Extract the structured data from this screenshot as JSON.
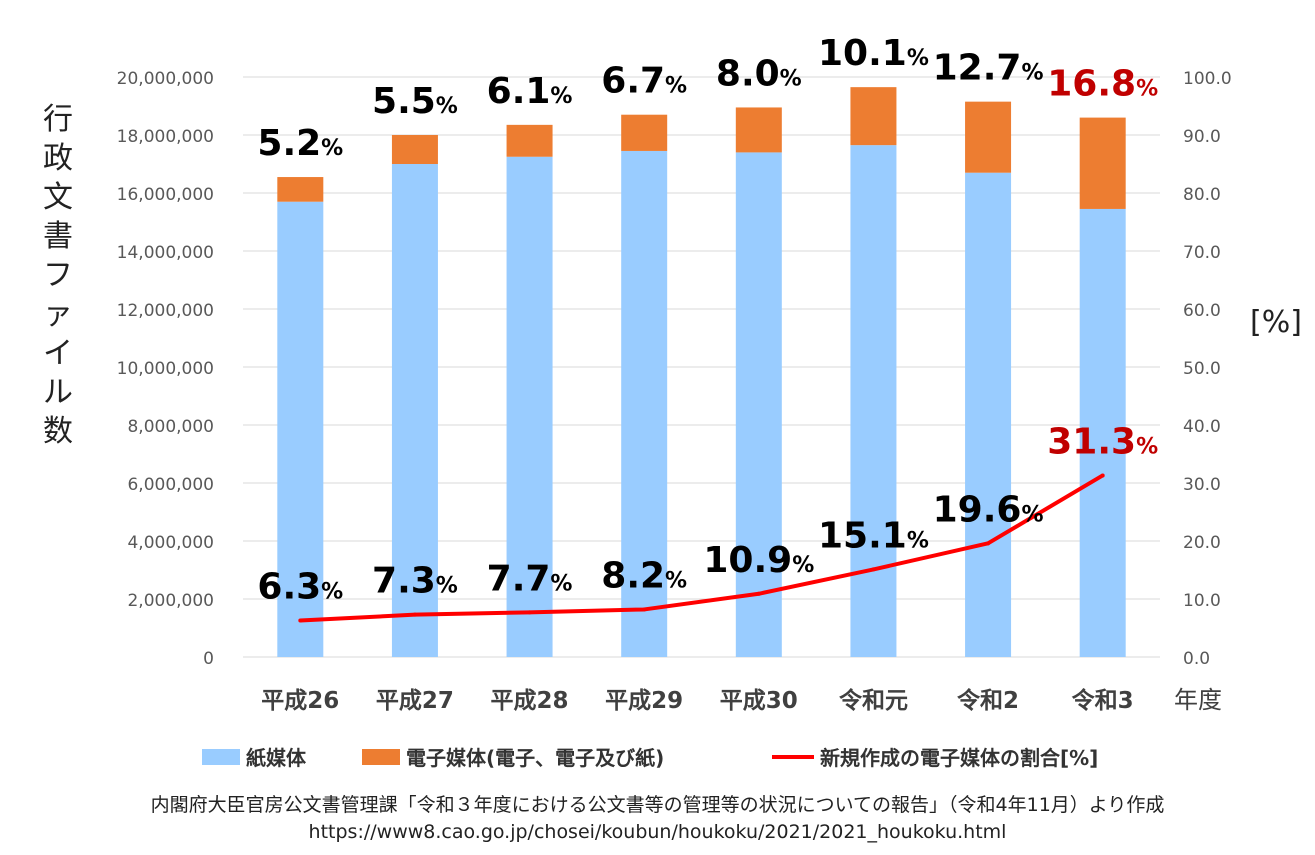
{
  "chart_data": {
    "type": "bar",
    "stacked": true,
    "categories": [
      "平成26",
      "平成27",
      "平成28",
      "平成29",
      "平成30",
      "令和元",
      "令和2",
      "令和3"
    ],
    "x_unit_label": "年度",
    "ylabel": "行政文書ファイル数",
    "ylim": [
      0,
      20000000
    ],
    "y_ticks": [
      "0",
      "2,000,000",
      "4,000,000",
      "6,000,000",
      "8,000,000",
      "10,000,000",
      "12,000,000",
      "14,000,000",
      "16,000,000",
      "18,000,000",
      "20,000,000"
    ],
    "y2label": "[%]",
    "y2lim": [
      0,
      100
    ],
    "y2_ticks": [
      "0.0",
      "10.0",
      "20.0",
      "30.0",
      "40.0",
      "50.0",
      "60.0",
      "70.0",
      "80.0",
      "90.0",
      "100.0"
    ],
    "grid": true,
    "legend_position": "bottom",
    "series": [
      {
        "name": "紙媒体",
        "color": "#99ccff",
        "values": [
          15700000,
          17000000,
          17250000,
          17450000,
          17400000,
          17650000,
          16700000,
          15450000
        ]
      },
      {
        "name": "電子媒体(電子、電子及び紙)",
        "color": "#ed7d31",
        "values": [
          850000,
          1000000,
          1100000,
          1250000,
          1550000,
          2000000,
          2450000,
          3150000
        ]
      },
      {
        "name": "新規作成の電子媒体の割合[%]",
        "color": "#ff0000",
        "type": "line",
        "axis": "right",
        "values": [
          6.3,
          7.3,
          7.7,
          8.2,
          10.9,
          15.1,
          19.6,
          31.3
        ]
      }
    ],
    "bar_labels": [
      "5.2",
      "5.5",
      "6.1",
      "6.7",
      "8.0",
      "10.1",
      "12.7",
      "16.8"
    ],
    "line_labels": [
      "6.3",
      "7.3",
      "7.7",
      "8.2",
      "10.9",
      "15.1",
      "19.6",
      "31.3"
    ],
    "percent_suffix": "%",
    "highlight_color": "#c00000"
  },
  "ylabel_chars": [
    "行",
    "政",
    "文",
    "書",
    "フ",
    "ァ",
    "イ",
    "ル",
    "数"
  ],
  "legend": {
    "paper": "紙媒体",
    "electronic": "電子媒体(電子、電子及び紙)",
    "ratio": "新規作成の電子媒体の割合[%]"
  },
  "source": {
    "line1": "内閣府大臣官房公文書管理課「令和３年度における公文書等の管理等の状況についての報告」（令和4年11月）より作成",
    "line2": "https://www8.cao.go.jp/chosei/koubun/houkoku/2021/2021_houkoku.html"
  }
}
